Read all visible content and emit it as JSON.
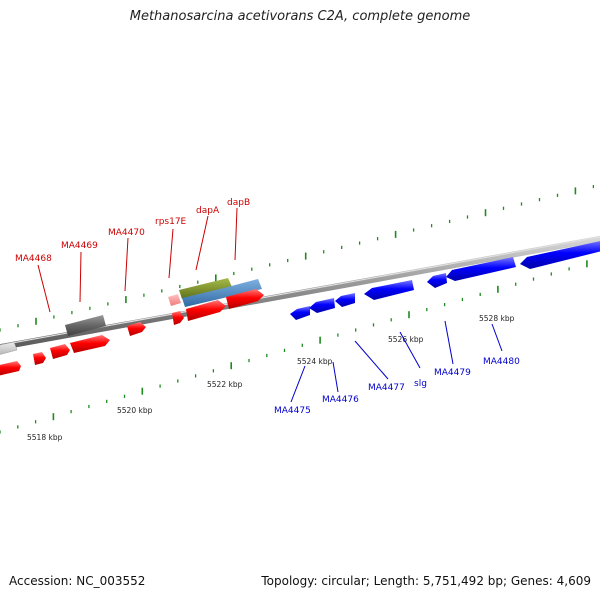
{
  "title": "Methanosarcina acetivorans C2A, complete genome",
  "footer": {
    "accession": "Accession: NC_003552",
    "summary": "Topology: circular; Length: 5,751,492 bp; Genes: 4,609"
  },
  "colors": {
    "forward": "#ff0000",
    "reverse": "#0000ff",
    "backbone": "#8c8c8c",
    "tick": "#1f8a1f",
    "gray_gene": "#666666",
    "light_gene": "#cccccc",
    "olive_gene": "#7a8f2a",
    "steel_gene": "#4a86c0",
    "pink_gene": "#ff9a9a"
  },
  "scale_labels": [
    {
      "text": "5518 kbp"
    },
    {
      "text": "5520 kbp"
    },
    {
      "text": "5522 kbp"
    },
    {
      "text": "5524 kbp"
    },
    {
      "text": "5526 kbp"
    },
    {
      "text": "5528 kbp"
    }
  ],
  "forward_labels": [
    {
      "text": "MA4468"
    },
    {
      "text": "MA4469"
    },
    {
      "text": "MA4470"
    },
    {
      "text": "rps17E"
    },
    {
      "text": "dapA"
    },
    {
      "text": "dapB"
    }
  ],
  "reverse_labels": [
    {
      "text": "MA4475"
    },
    {
      "text": "MA4476"
    },
    {
      "text": "MA4477"
    },
    {
      "text": "slg"
    },
    {
      "text": "MA4479"
    },
    {
      "text": "MA4480"
    }
  ]
}
